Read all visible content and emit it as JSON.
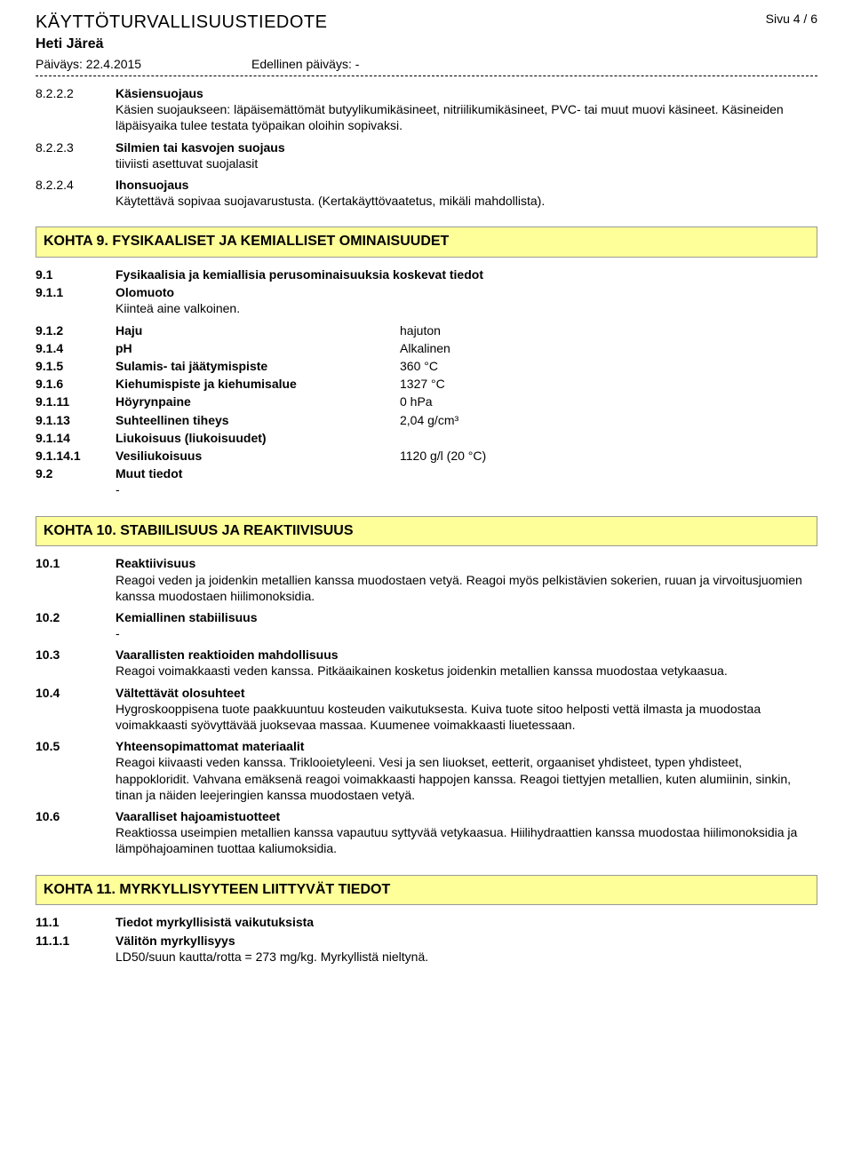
{
  "header": {
    "title": "KÄYTTÖTURVALLISUUSTIEDOTE",
    "subtitle": "Heti Järeä",
    "date_label": "Päiväys: 22.4.2015",
    "prev_date": "Edellinen päiväys: -",
    "page_label": "Sivu  4 / 6"
  },
  "s8": {
    "n8222": "8.2.2.2",
    "t8222": "Käsiensuojaus",
    "b8222": "Käsien suojaukseen: läpäisemättömät butyylikumikäsineet, nitriilikumikäsineet, PVC- tai muut muovi käsineet. Käsineiden läpäisyaika tulee testata työpaikan oloihin sopivaksi.",
    "n8223": "8.2.2.3",
    "t8223": "Silmien tai kasvojen suojaus",
    "b8223": "tiiviisti asettuvat suojalasit",
    "n8224": "8.2.2.4",
    "t8224": "Ihonsuojaus",
    "b8224": "Käytettävä sopivaa suojavarustusta. (Kertakäyttövaatetus, mikäli mahdollista)."
  },
  "sec9_title": "KOHTA 9. FYSIKAALISET JA KEMIALLISET OMINAISUUDET",
  "s9": {
    "n91": "9.1",
    "t91": "Fysikaalisia ja kemiallisia perusominaisuuksia koskevat tiedot",
    "n911": "9.1.1",
    "t911": "Olomuoto",
    "b911": "Kiinteä aine valkoinen.",
    "props": [
      {
        "n": "9.1.2",
        "l": "Haju",
        "v": "hajuton"
      },
      {
        "n": "9.1.4",
        "l": "pH",
        "v": "Alkalinen"
      },
      {
        "n": "9.1.5",
        "l": "Sulamis- tai jäätymispiste",
        "v": "360 °C"
      },
      {
        "n": "9.1.6",
        "l": "Kiehumispiste ja kiehumisalue",
        "v": "1327 °C"
      },
      {
        "n": "9.1.11",
        "l": "Höyrynpaine",
        "v": "0 hPa"
      },
      {
        "n": "9.1.13",
        "l": "Suhteellinen tiheys",
        "v": "2,04 g/cm³"
      }
    ],
    "n9114": "9.1.14",
    "t9114": "Liukoisuus (liukoisuudet)",
    "n91141": "9.1.14.1",
    "t91141": "Vesiliukoisuus",
    "v91141": "1120 g/l (20 °C)",
    "n92": "9.2",
    "t92": "Muut tiedot",
    "b92": "-"
  },
  "sec10_title": "KOHTA 10. STABIILISUUS JA REAKTIIVISUUS",
  "s10": {
    "n101": "10.1",
    "t101": "Reaktiivisuus",
    "b101": "Reagoi veden ja joidenkin metallien kanssa muodostaen vetyä. Reagoi myös pelkistävien sokerien, ruuan ja virvoitusjuomien kanssa muodostaen hiilimonoksidia.",
    "n102": "10.2",
    "t102": "Kemiallinen stabiilisuus",
    "b102": "-",
    "n103": "10.3",
    "t103": "Vaarallisten reaktioiden mahdollisuus",
    "b103": "Reagoi voimakkaasti veden kanssa. Pitkäaikainen kosketus joidenkin metallien kanssa muodostaa vetykaasua.",
    "n104": "10.4",
    "t104": "Vältettävät olosuhteet",
    "b104": "Hygroskooppisena tuote paakkuuntuu kosteuden vaikutuksesta. Kuiva tuote sitoo helposti vettä ilmasta ja muodostaa voimakkaasti syövyttävää juoksevaa massaa. Kuumenee voimakkaasti liuetessaan.",
    "n105": "10.5",
    "t105": "Yhteensopimattomat materiaalit",
    "b105": "Reagoi kiivaasti veden kanssa. Triklooietyleeni. Vesi ja sen liuokset, eetterit, orgaaniset yhdisteet, typen yhdisteet, happokloridit. Vahvana emäksenä reagoi voimakkaasti happojen kanssa. Reagoi tiettyjen metallien, kuten alumiinin, sinkin, tinan ja näiden leejeringien kanssa muodostaen vetyä.",
    "n106": "10.6",
    "t106": "Vaaralliset hajoamistuotteet",
    "b106": "Reaktiossa useimpien metallien kanssa vapautuu syttyvää vetykaasua. Hiilihydraattien kanssa muodostaa hiilimonoksidia ja lämpöhajoaminen tuottaa kaliumoksidia."
  },
  "sec11_title": "KOHTA 11. MYRKYLLISYYTEEN LIITTYVÄT TIEDOT",
  "s11": {
    "n111": "11.1",
    "t111": "Tiedot myrkyllisistä vaikutuksista",
    "n1111": "11.1.1",
    "t1111": "Välitön myrkyllisyys",
    "b1111": "LD50/suun kautta/rotta = 273 mg/kg. Myrkyllistä nieltynä."
  }
}
